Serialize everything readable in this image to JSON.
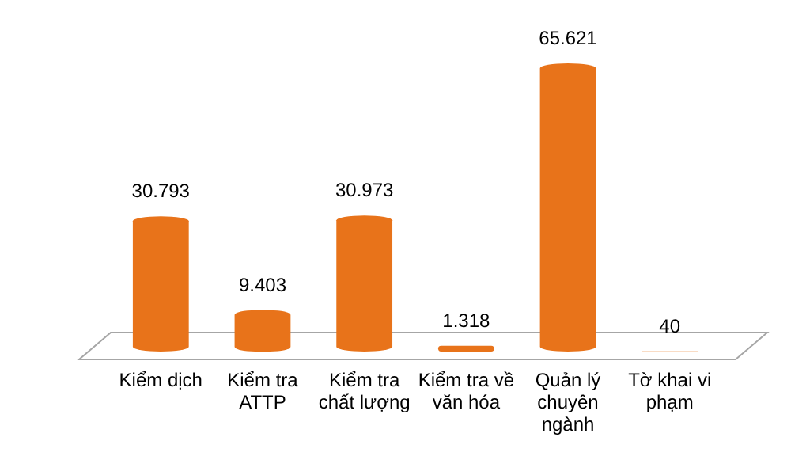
{
  "chart_data": {
    "type": "bar",
    "categories": [
      "Kiểm dịch",
      "Kiểm tra ATTP",
      "Kiểm tra chất lượng",
      "Kiểm tra về văn hóa",
      "Quản lý chuyên ngành",
      "Tờ khai vi phạm"
    ],
    "values": [
      30793,
      9403,
      30973,
      1318,
      65621,
      40
    ],
    "value_labels": [
      "30.793",
      "9.403",
      "30.973",
      "1.318",
      "65.621",
      "40"
    ],
    "color": "#e8731a"
  }
}
